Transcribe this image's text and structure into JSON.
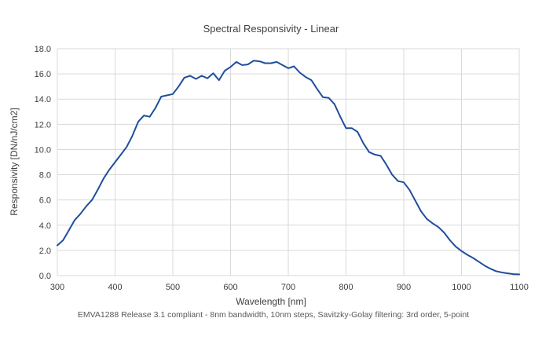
{
  "chart_data": {
    "type": "line",
    "title": "Spectral Responsivity -  Linear",
    "xlabel": "Wavelength [nm]",
    "ylabel": "Responsivity [DN/nJ/cm2]",
    "footnote": "EMVA1288 Release 3.1 compliant - 8nm bandwidth, 10nm steps, Savitzky-Golay filtering: 3rd order, 5-point",
    "xlim": [
      300,
      1100
    ],
    "ylim": [
      0,
      18
    ],
    "x_ticks": [
      "300",
      "400",
      "500",
      "600",
      "700",
      "800",
      "900",
      "1000",
      "1100"
    ],
    "y_ticks": [
      "0.0",
      "2.0",
      "4.0",
      "6.0",
      "8.0",
      "10.0",
      "12.0",
      "14.0",
      "16.0",
      "18.0"
    ],
    "grid": true,
    "legend": "none",
    "line_color": "#1f4e9c",
    "series": [
      {
        "x": [
          300,
          310,
          320,
          330,
          340,
          350,
          360,
          370,
          380,
          390,
          400,
          410,
          420,
          430,
          440,
          450,
          460,
          470,
          480,
          490,
          500,
          510,
          520,
          530,
          540,
          550,
          560,
          570,
          580,
          590,
          600,
          610,
          620,
          630,
          640,
          650,
          660,
          670,
          680,
          690,
          700,
          710,
          720,
          730,
          740,
          750,
          760,
          770,
          780,
          790,
          800,
          810,
          820,
          830,
          840,
          850,
          860,
          870,
          880,
          890,
          900,
          910,
          920,
          930,
          940,
          950,
          960,
          970,
          980,
          990,
          1000,
          1010,
          1020,
          1030,
          1040,
          1050,
          1060,
          1070,
          1080,
          1090,
          1100
        ],
        "values": [
          2.4,
          2.8,
          3.6,
          4.4,
          4.9,
          5.5,
          6.0,
          6.8,
          7.7,
          8.4,
          9.0,
          9.6,
          10.2,
          11.1,
          12.2,
          12.7,
          12.6,
          13.3,
          14.2,
          14.3,
          14.4,
          15.0,
          15.7,
          15.85,
          15.6,
          15.85,
          15.65,
          16.05,
          15.5,
          16.25,
          16.55,
          16.95,
          16.7,
          16.75,
          17.05,
          17.0,
          16.85,
          16.85,
          16.95,
          16.7,
          16.45,
          16.6,
          16.1,
          15.75,
          15.5,
          14.8,
          14.15,
          14.1,
          13.6,
          12.6,
          11.7,
          11.7,
          11.4,
          10.5,
          9.8,
          9.6,
          9.5,
          8.8,
          8.0,
          7.5,
          7.4,
          6.8,
          5.95,
          5.1,
          4.5,
          4.15,
          3.85,
          3.4,
          2.8,
          2.3,
          1.95,
          1.65,
          1.4,
          1.1,
          0.8,
          0.55,
          0.35,
          0.25,
          0.18,
          0.12,
          0.1
        ]
      }
    ]
  }
}
